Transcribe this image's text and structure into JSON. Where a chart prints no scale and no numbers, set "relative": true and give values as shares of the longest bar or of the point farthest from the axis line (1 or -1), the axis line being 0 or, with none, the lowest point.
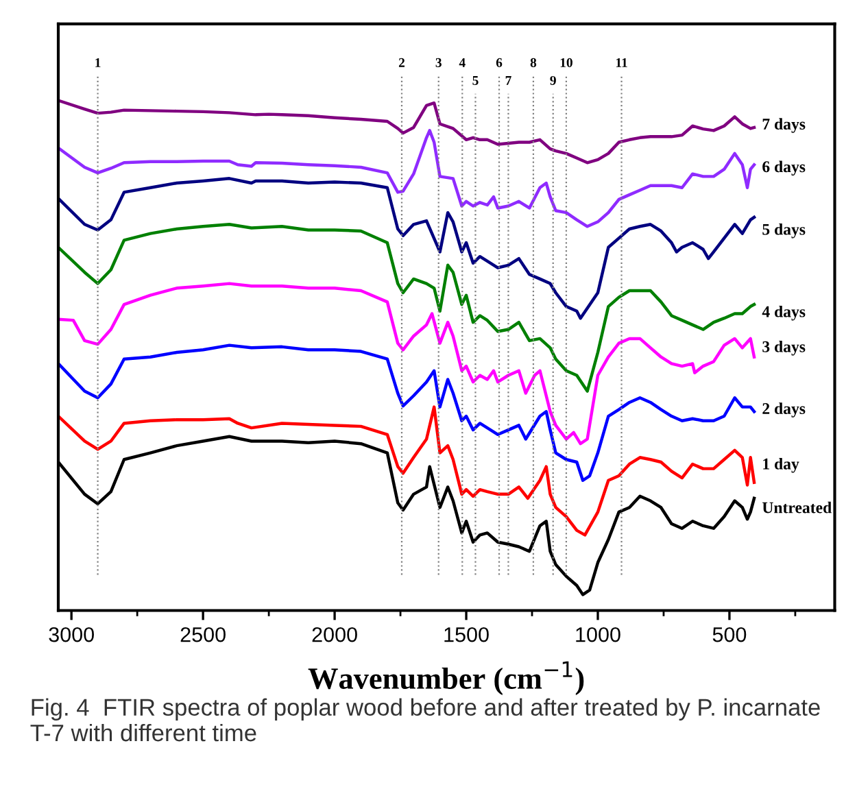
{
  "chart_data": {
    "type": "line",
    "relative": true,
    "xlabel": "Wavenumber (cm$^{−1}$)",
    "xlim": [
      3050,
      100
    ],
    "xticks": [
      3000,
      {
        "value": 2750,
        "label": null
      },
      2500,
      {
        "value": 2250,
        "label": null
      },
      2000,
      {
        "value": 1750,
        "label": null
      },
      1500,
      {
        "value": 1250,
        "label": null
      },
      1000,
      {
        "value": 750,
        "label": null
      },
      500,
      {
        "value": 250,
        "label": null
      }
    ],
    "tick_labels": "x",
    "grid": false,
    "legend": false,
    "marker": "none",
    "line_style": "solid",
    "annotations": [
      "Fig. 4  FTIR spectra of poplar wood before and after treated by P. incarnate T-7 with different time",
      "1",
      "2",
      "3",
      "4",
      "5",
      "6",
      "7",
      "8",
      "9",
      "10",
      "11"
    ],
    "ref_lines": [
      {
        "axis": "x",
        "value": 2900,
        "color": "#808080",
        "line_style": "dotted"
      },
      {
        "axis": "x",
        "value": 1745,
        "color": "#808080",
        "line_style": "dotted"
      },
      {
        "axis": "x",
        "value": 1605,
        "color": "#808080",
        "line_style": "dotted"
      },
      {
        "axis": "x",
        "value": 1515,
        "color": "#808080",
        "line_style": "dotted"
      },
      {
        "axis": "x",
        "value": 1465,
        "color": "#808080",
        "line_style": "dotted"
      },
      {
        "axis": "x",
        "value": 1375,
        "color": "#808080",
        "line_style": "dotted"
      },
      {
        "axis": "x",
        "value": 1340,
        "color": "#808080",
        "line_style": "dotted"
      },
      {
        "axis": "x",
        "value": 1245,
        "color": "#808080",
        "line_style": "dotted"
      },
      {
        "axis": "x",
        "value": 1170,
        "color": "#808080",
        "line_style": "dotted"
      },
      {
        "axis": "x",
        "value": 1120,
        "color": "#808080",
        "line_style": "dotted"
      },
      {
        "axis": "x",
        "value": 910,
        "color": "#808080",
        "line_style": "dotted"
      }
    ],
    "series": [
      {
        "name": "7 days",
        "color": "#800080",
        "x": [
          3050,
          2950,
          2900,
          2850,
          2800,
          2700,
          2600,
          2500,
          2400,
          2300,
          2250,
          2200,
          2100,
          2000,
          1900,
          1800,
          1760,
          1740,
          1700,
          1651,
          1622,
          1600,
          1550,
          1500,
          1474,
          1448,
          1420,
          1380,
          1340,
          1300,
          1260,
          1220,
          1181,
          1160,
          1120,
          1080,
          1040,
          1000,
          960,
          920,
          880,
          840,
          800,
          760,
          720,
          680,
          640,
          600,
          560,
          520,
          480,
          451,
          420,
          406
        ],
        "values": [
          1.0,
          0.983,
          0.975,
          0.977,
          0.981,
          0.98,
          0.979,
          0.978,
          0.976,
          0.972,
          0.973,
          0.972,
          0.97,
          0.966,
          0.963,
          0.959,
          0.945,
          0.936,
          0.947,
          0.99,
          0.995,
          0.954,
          0.945,
          0.923,
          0.927,
          0.923,
          0.923,
          0.914,
          0.916,
          0.918,
          0.918,
          0.923,
          0.905,
          0.901,
          0.896,
          0.887,
          0.878,
          0.884,
          0.896,
          0.918,
          0.923,
          0.927,
          0.929,
          0.929,
          0.929,
          0.932,
          0.95,
          0.944,
          0.941,
          0.95,
          0.968,
          0.954,
          0.945,
          0.947
        ]
      },
      {
        "name": "6 days",
        "color": "#8f2bff",
        "x": [
          3050,
          2950,
          2900,
          2850,
          2800,
          2700,
          2600,
          2500,
          2400,
          2368,
          2316,
          2300,
          2200,
          2100,
          2000,
          1900,
          1800,
          1760,
          1740,
          1700,
          1651,
          1639,
          1622,
          1600,
          1550,
          1517,
          1500,
          1474,
          1448,
          1420,
          1396,
          1380,
          1340,
          1300,
          1260,
          1220,
          1196,
          1181,
          1160,
          1120,
          1080,
          1040,
          1000,
          960,
          920,
          880,
          840,
          800,
          760,
          720,
          680,
          640,
          600,
          560,
          520,
          480,
          451,
          432,
          420,
          406
        ],
        "values": [
          0.907,
          0.869,
          0.858,
          0.867,
          0.878,
          0.88,
          0.88,
          0.881,
          0.881,
          0.874,
          0.871,
          0.878,
          0.877,
          0.874,
          0.872,
          0.869,
          0.858,
          0.82,
          0.822,
          0.856,
          0.927,
          0.941,
          0.918,
          0.851,
          0.847,
          0.793,
          0.802,
          0.793,
          0.8,
          0.795,
          0.811,
          0.789,
          0.793,
          0.802,
          0.789,
          0.829,
          0.838,
          0.811,
          0.784,
          0.78,
          0.766,
          0.753,
          0.762,
          0.78,
          0.806,
          0.815,
          0.824,
          0.833,
          0.833,
          0.833,
          0.829,
          0.856,
          0.851,
          0.851,
          0.865,
          0.896,
          0.874,
          0.829,
          0.865,
          0.874
        ]
      },
      {
        "name": "5 days",
        "color": "#000080",
        "x": [
          3050,
          2950,
          2900,
          2850,
          2800,
          2700,
          2600,
          2500,
          2400,
          2316,
          2300,
          2200,
          2100,
          2000,
          1900,
          1800,
          1760,
          1740,
          1700,
          1651,
          1600,
          1570,
          1550,
          1517,
          1500,
          1474,
          1448,
          1420,
          1380,
          1340,
          1300,
          1260,
          1220,
          1181,
          1160,
          1120,
          1080,
          1066,
          1000,
          960,
          920,
          880,
          840,
          800,
          760,
          720,
          701,
          680,
          640,
          600,
          580,
          560,
          520,
          480,
          451,
          420,
          406
        ],
        "values": [
          0.808,
          0.757,
          0.746,
          0.766,
          0.82,
          0.829,
          0.838,
          0.842,
          0.847,
          0.838,
          0.842,
          0.842,
          0.838,
          0.84,
          0.838,
          0.829,
          0.748,
          0.735,
          0.757,
          0.764,
          0.703,
          0.78,
          0.762,
          0.703,
          0.721,
          0.681,
          0.694,
          0.685,
          0.672,
          0.677,
          0.69,
          0.659,
          0.65,
          0.641,
          0.623,
          0.596,
          0.587,
          0.573,
          0.623,
          0.712,
          0.73,
          0.748,
          0.753,
          0.757,
          0.744,
          0.721,
          0.703,
          0.712,
          0.721,
          0.708,
          0.69,
          0.703,
          0.73,
          0.757,
          0.739,
          0.766,
          0.771
        ]
      },
      {
        "name": "4 days",
        "color": "#008000",
        "x": [
          3050,
          2950,
          2900,
          2850,
          2800,
          2700,
          2600,
          2500,
          2400,
          2316,
          2200,
          2100,
          2000,
          1900,
          1800,
          1760,
          1740,
          1700,
          1651,
          1622,
          1600,
          1570,
          1550,
          1517,
          1500,
          1474,
          1448,
          1420,
          1380,
          1340,
          1300,
          1260,
          1220,
          1181,
          1160,
          1120,
          1080,
          1040,
          1000,
          960,
          920,
          880,
          840,
          800,
          760,
          720,
          680,
          640,
          600,
          560,
          520,
          480,
          451,
          420,
          406
        ],
        "values": [
          0.712,
          0.663,
          0.641,
          0.668,
          0.726,
          0.739,
          0.748,
          0.753,
          0.757,
          0.75,
          0.753,
          0.746,
          0.746,
          0.744,
          0.721,
          0.641,
          0.623,
          0.65,
          0.641,
          0.632,
          0.587,
          0.677,
          0.663,
          0.6,
          0.618,
          0.565,
          0.578,
          0.569,
          0.547,
          0.551,
          0.565,
          0.529,
          0.533,
          0.515,
          0.493,
          0.47,
          0.461,
          0.43,
          0.506,
          0.596,
          0.614,
          0.627,
          0.627,
          0.627,
          0.605,
          0.578,
          0.569,
          0.56,
          0.551,
          0.565,
          0.573,
          0.582,
          0.582,
          0.596,
          0.6
        ]
      },
      {
        "name": "3 days",
        "color": "#ff00ff",
        "x": [
          3050,
          2993,
          2950,
          2900,
          2850,
          2800,
          2700,
          2600,
          2500,
          2400,
          2316,
          2200,
          2100,
          2000,
          1900,
          1800,
          1760,
          1740,
          1700,
          1651,
          1630,
          1600,
          1570,
          1550,
          1517,
          1500,
          1474,
          1448,
          1420,
          1396,
          1380,
          1340,
          1300,
          1274,
          1240,
          1220,
          1181,
          1160,
          1120,
          1092,
          1066,
          1040,
          1000,
          960,
          920,
          880,
          840,
          800,
          760,
          720,
          680,
          640,
          632,
          600,
          560,
          520,
          480,
          451,
          420,
          406
        ],
        "values": [
          0.571,
          0.569,
          0.529,
          0.522,
          0.551,
          0.6,
          0.618,
          0.632,
          0.636,
          0.641,
          0.636,
          0.636,
          0.632,
          0.632,
          0.627,
          0.605,
          0.524,
          0.511,
          0.538,
          0.56,
          0.582,
          0.524,
          0.565,
          0.538,
          0.47,
          0.479,
          0.448,
          0.461,
          0.453,
          0.47,
          0.448,
          0.461,
          0.47,
          0.426,
          0.461,
          0.47,
          0.39,
          0.363,
          0.336,
          0.349,
          0.327,
          0.336,
          0.461,
          0.497,
          0.524,
          0.533,
          0.533,
          0.515,
          0.497,
          0.484,
          0.479,
          0.484,
          0.466,
          0.479,
          0.488,
          0.52,
          0.533,
          0.515,
          0.533,
          0.497
        ]
      },
      {
        "name": "2 days",
        "color": "#0000ff",
        "x": [
          3050,
          2950,
          2900,
          2850,
          2800,
          2700,
          2600,
          2500,
          2400,
          2316,
          2200,
          2100,
          2000,
          1900,
          1800,
          1760,
          1740,
          1700,
          1651,
          1622,
          1600,
          1570,
          1550,
          1517,
          1500,
          1474,
          1448,
          1420,
          1380,
          1340,
          1300,
          1274,
          1220,
          1196,
          1181,
          1160,
          1120,
          1080,
          1057,
          1031,
          1000,
          960,
          920,
          880,
          840,
          800,
          760,
          720,
          680,
          640,
          600,
          560,
          520,
          480,
          451,
          420,
          406
        ],
        "values": [
          0.484,
          0.43,
          0.417,
          0.444,
          0.493,
          0.497,
          0.506,
          0.511,
          0.52,
          0.515,
          0.517,
          0.511,
          0.511,
          0.508,
          0.493,
          0.426,
          0.401,
          0.421,
          0.448,
          0.47,
          0.399,
          0.453,
          0.426,
          0.372,
          0.381,
          0.354,
          0.367,
          0.358,
          0.345,
          0.354,
          0.363,
          0.336,
          0.381,
          0.39,
          0.354,
          0.309,
          0.296,
          0.291,
          0.255,
          0.264,
          0.309,
          0.381,
          0.394,
          0.408,
          0.417,
          0.408,
          0.394,
          0.381,
          0.372,
          0.376,
          0.372,
          0.372,
          0.381,
          0.417,
          0.399,
          0.399,
          0.39
        ]
      },
      {
        "name": "1 day",
        "color": "#ff0000",
        "x": [
          3050,
          2950,
          2900,
          2850,
          2800,
          2700,
          2600,
          2500,
          2400,
          2368,
          2316,
          2200,
          2100,
          2000,
          1900,
          1800,
          1760,
          1740,
          1700,
          1651,
          1622,
          1600,
          1570,
          1550,
          1517,
          1500,
          1474,
          1448,
          1420,
          1380,
          1340,
          1300,
          1266,
          1220,
          1196,
          1181,
          1160,
          1120,
          1080,
          1049,
          1000,
          960,
          920,
          880,
          840,
          800,
          760,
          720,
          680,
          640,
          600,
          560,
          520,
          480,
          451,
          432,
          420,
          406
        ],
        "values": [
          0.381,
          0.332,
          0.316,
          0.332,
          0.367,
          0.372,
          0.374,
          0.374,
          0.376,
          0.367,
          0.358,
          0.367,
          0.365,
          0.363,
          0.361,
          0.345,
          0.282,
          0.269,
          0.3,
          0.336,
          0.399,
          0.309,
          0.323,
          0.296,
          0.228,
          0.237,
          0.224,
          0.237,
          0.233,
          0.228,
          0.228,
          0.242,
          0.22,
          0.255,
          0.282,
          0.228,
          0.202,
          0.184,
          0.157,
          0.148,
          0.193,
          0.255,
          0.264,
          0.287,
          0.3,
          0.296,
          0.291,
          0.273,
          0.26,
          0.287,
          0.278,
          0.278,
          0.296,
          0.314,
          0.3,
          0.246,
          0.3,
          0.251
        ]
      },
      {
        "name": "Untreated",
        "color": "#000000",
        "x": [
          3050,
          2950,
          2900,
          2850,
          2800,
          2700,
          2600,
          2500,
          2400,
          2316,
          2200,
          2100,
          2000,
          1900,
          1800,
          1760,
          1740,
          1700,
          1651,
          1639,
          1600,
          1570,
          1550,
          1517,
          1500,
          1474,
          1448,
          1420,
          1380,
          1340,
          1300,
          1260,
          1220,
          1196,
          1181,
          1160,
          1120,
          1080,
          1057,
          1031,
          1000,
          960,
          920,
          880,
          840,
          800,
          760,
          720,
          680,
          640,
          600,
          560,
          520,
          480,
          451,
          432,
          420,
          406
        ],
        "values": [
          0.291,
          0.228,
          0.209,
          0.233,
          0.296,
          0.309,
          0.323,
          0.332,
          0.341,
          0.332,
          0.332,
          0.329,
          0.332,
          0.327,
          0.309,
          0.211,
          0.197,
          0.228,
          0.242,
          0.282,
          0.202,
          0.242,
          0.215,
          0.152,
          0.175,
          0.134,
          0.148,
          0.152,
          0.134,
          0.13,
          0.125,
          0.116,
          0.166,
          0.175,
          0.116,
          0.09,
          0.067,
          0.049,
          0.031,
          0.04,
          0.094,
          0.139,
          0.193,
          0.202,
          0.224,
          0.215,
          0.202,
          0.17,
          0.161,
          0.175,
          0.166,
          0.161,
          0.184,
          0.215,
          0.202,
          0.179,
          0.193,
          0.22
        ]
      }
    ]
  }
}
